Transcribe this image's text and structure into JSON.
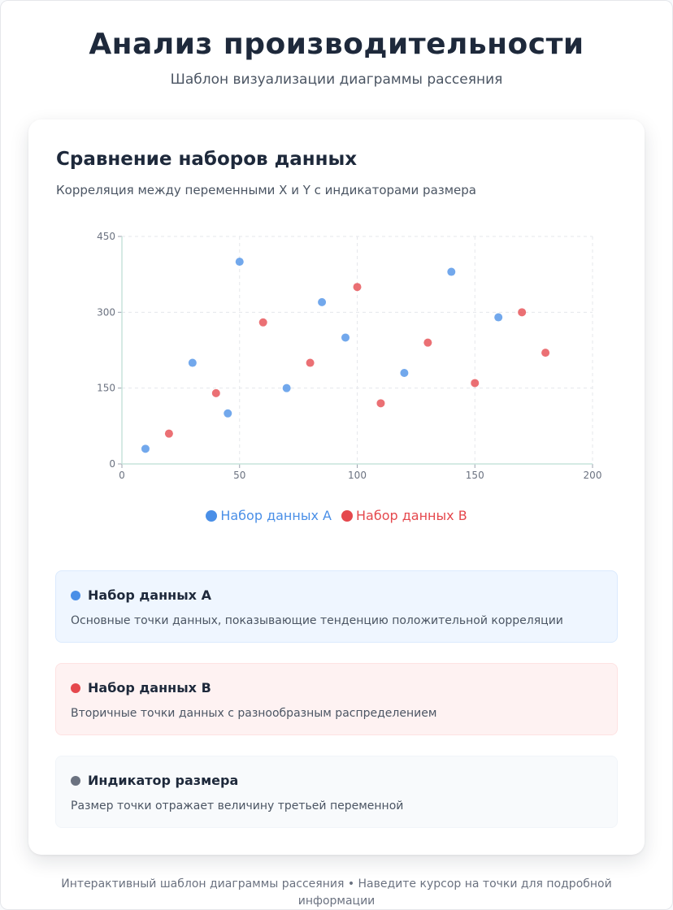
{
  "header": {
    "title": "Анализ производительности",
    "subtitle": "Шаблон визуализации диаграммы рассеяния"
  },
  "card": {
    "title": "Сравнение наборов данных",
    "subtitle": "Корреляция между переменными X и Y с индикаторами размера"
  },
  "colors": {
    "series_a": "#4a8fe7",
    "series_b": "#e5484d",
    "size": "#6b7280"
  },
  "chart_data": {
    "type": "scatter",
    "title": "",
    "xlabel": "",
    "ylabel": "",
    "xlim": [
      0,
      200
    ],
    "ylim": [
      0,
      450
    ],
    "x_ticks": [
      "0",
      "50",
      "100",
      "150",
      "200"
    ],
    "y_ticks": [
      "0",
      "150",
      "300",
      "450"
    ],
    "grid": true,
    "legend": "bottom",
    "series": [
      {
        "name": "Набор данных A",
        "color": "#4a8fe7",
        "points": [
          {
            "x": 10,
            "y": 30
          },
          {
            "x": 30,
            "y": 200
          },
          {
            "x": 45,
            "y": 100
          },
          {
            "x": 50,
            "y": 400
          },
          {
            "x": 70,
            "y": 150
          },
          {
            "x": 85,
            "y": 320
          },
          {
            "x": 95,
            "y": 250
          },
          {
            "x": 120,
            "y": 180
          },
          {
            "x": 140,
            "y": 380
          },
          {
            "x": 160,
            "y": 290
          }
        ]
      },
      {
        "name": "Набор данных B",
        "color": "#e5484d",
        "points": [
          {
            "x": 20,
            "y": 60
          },
          {
            "x": 40,
            "y": 140
          },
          {
            "x": 60,
            "y": 280
          },
          {
            "x": 80,
            "y": 200
          },
          {
            "x": 100,
            "y": 350
          },
          {
            "x": 110,
            "y": 120
          },
          {
            "x": 130,
            "y": 240
          },
          {
            "x": 150,
            "y": 160
          },
          {
            "x": 170,
            "y": 300
          },
          {
            "x": 180,
            "y": 220
          }
        ]
      }
    ]
  },
  "info": [
    {
      "title": "Набор данных A",
      "text": "Основные точки данных, показывающие тенденцию положительной корреляции"
    },
    {
      "title": "Набор данных B",
      "text": "Вторичные точки данных с разнообразным распределением"
    },
    {
      "title": "Индикатор размера",
      "text": "Размер точки отражает величину третьей переменной"
    }
  ],
  "footer": "Интерактивный шаблон диаграммы рассеяния • Наведите курсор на точки для подробной информации"
}
